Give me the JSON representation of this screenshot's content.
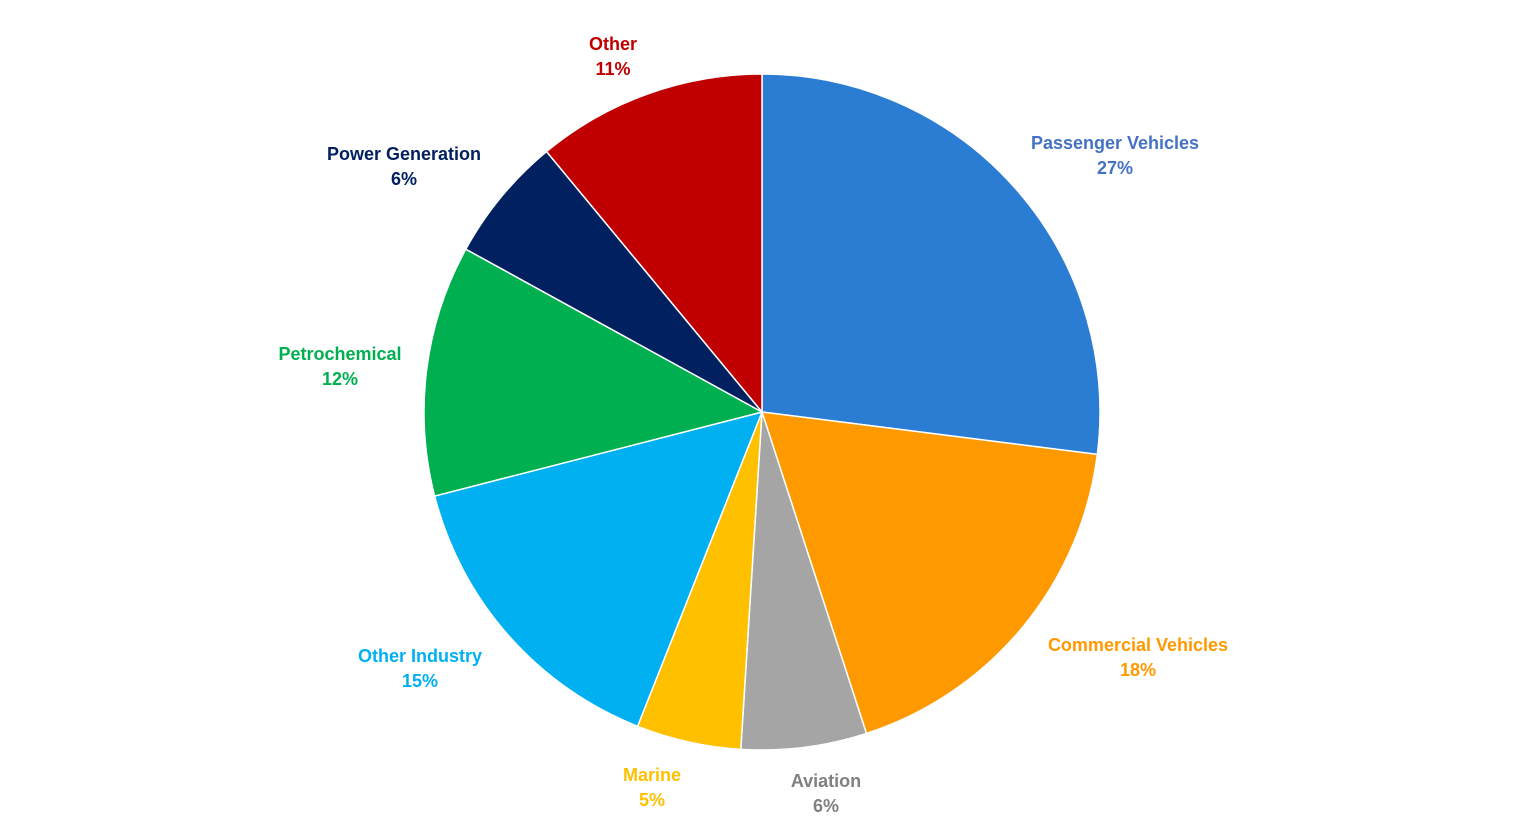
{
  "chart_data": {
    "type": "pie",
    "title": "",
    "categories": [
      "Passenger Vehicles",
      "Commercial Vehicles",
      "Aviation",
      "Marine",
      "Other Industry",
      "Petrochemical",
      "Power Generation",
      "Other"
    ],
    "values": [
      27,
      18,
      6,
      5,
      15,
      12,
      6,
      11
    ],
    "value_labels": [
      "27%",
      "18%",
      "6%",
      "5%",
      "15%",
      "12%",
      "6%",
      "11%"
    ],
    "colors": [
      "#2B7CD3",
      "#FF9900",
      "#A5A5A5",
      "#FFC000",
      "#00B0F0",
      "#00B050",
      "#002060",
      "#C00000"
    ],
    "label_colors": [
      "#4472C4",
      "#FF9900",
      "#808080",
      "#FFC000",
      "#00B0F0",
      "#00B050",
      "#002060",
      "#C00000"
    ],
    "start": "12 o'clock",
    "direction": "clockwise",
    "legend": "none",
    "labels": "outside"
  }
}
